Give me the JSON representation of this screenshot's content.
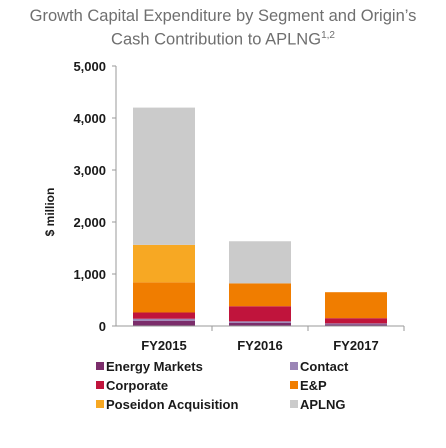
{
  "chart_data": {
    "type": "bar",
    "stacked": true,
    "title_line1": "Growth Capital Expenditure by Segment and Origin’s",
    "title_line2": "Cash Contribution to APLNG",
    "title_superscript": "1,2",
    "ylabel": "$ million",
    "xlabel": "",
    "ylim": [
      0,
      5000
    ],
    "yticks": [
      "0",
      "1,000",
      "2,000",
      "3,000",
      "4,000",
      "5,000"
    ],
    "ytick_values": [
      0,
      1000,
      2000,
      3000,
      4000,
      5000
    ],
    "categories": [
      "FY2015",
      "FY2016",
      "FY2017"
    ],
    "legend_position": "bottom",
    "grid": false,
    "series": [
      {
        "name": "Energy Markets",
        "color": "#7b2d6b",
        "values": [
          100,
          60,
          30
        ]
      },
      {
        "name": "Contact",
        "color": "#9b85b6",
        "values": [
          40,
          30,
          20
        ]
      },
      {
        "name": "Corporate",
        "color": "#c0143c",
        "values": [
          120,
          290,
          100
        ]
      },
      {
        "name": "E&P",
        "color": "#f07d00",
        "values": [
          580,
          440,
          500
        ]
      },
      {
        "name": "Poseidon Acquisition",
        "color": "#f7a823",
        "values": [
          720,
          0,
          0
        ]
      },
      {
        "name": "APLNG",
        "color": "#cbcbcb",
        "values": [
          2640,
          810,
          0
        ]
      }
    ]
  }
}
